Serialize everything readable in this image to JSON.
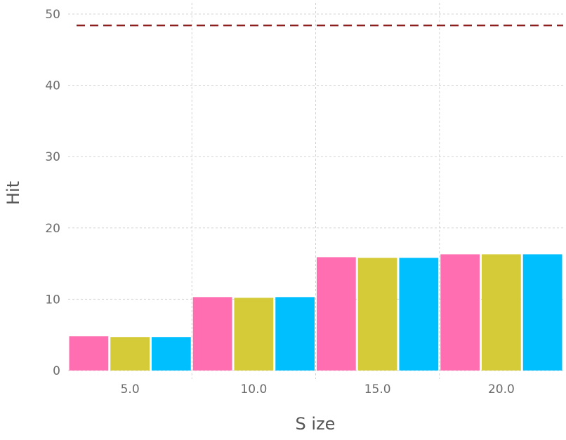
{
  "chart_data": {
    "type": "bar",
    "title": "",
    "xlabel": "S ize",
    "ylabel": "Hit",
    "categories": [
      "5.0",
      "10.0",
      "15.0",
      "20.0"
    ],
    "series": [
      {
        "color": "#ff6eb0",
        "values": [
          4.8,
          10.3,
          15.9,
          16.3
        ]
      },
      {
        "color": "#d5ca38",
        "values": [
          4.7,
          10.2,
          15.8,
          16.3
        ]
      },
      {
        "color": "#00bfff",
        "values": [
          4.7,
          10.3,
          15.8,
          16.3
        ]
      }
    ],
    "ylim": [
      0,
      51
    ],
    "yticks": [
      0,
      10,
      20,
      30,
      40,
      50
    ],
    "reference_line": {
      "y": 48.4,
      "color": "#8b1a1a",
      "style": "dashed"
    },
    "grid": true,
    "legend": "none"
  }
}
